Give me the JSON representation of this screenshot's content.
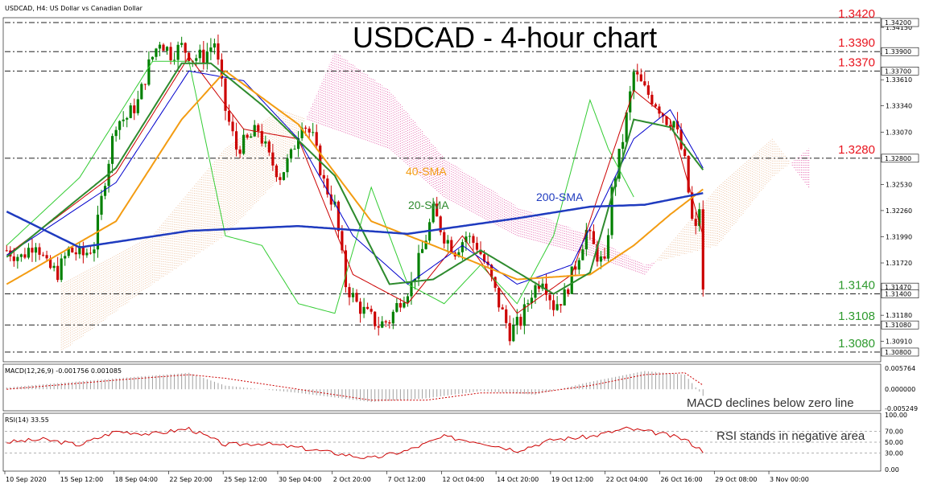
{
  "header": {
    "main": "USDCAD, H4:  US Dollar vs Canadian Dollar",
    "macd": "MACD(12,26,9) -0.001756 0.001085",
    "rsi": "RSI(14) 33.55"
  },
  "title": "USDCAD - 4-hour chart",
  "colors": {
    "bull": "#008000",
    "bear": "#cc0000",
    "sma20": "#2e8b2e",
    "sma40": "#f39c12",
    "sma200": "#1f3bbf",
    "tenkan": "#cc0000",
    "kijun": "#0000cc",
    "chikou": "#33cc33",
    "cloud": "#e0409a",
    "level_red": "#e8141e",
    "level_green": "#2e9a2e"
  },
  "annotations": {
    "sma40": "40-SMA",
    "sma20": "20-SMA",
    "sma200": "200-SMA",
    "macd_note": "MACD declines below zero line",
    "rsi_note": "RSI stands in negative area"
  },
  "levels": [
    {
      "label": "1.3420",
      "value": 1.342,
      "color": "red"
    },
    {
      "label": "1.3390",
      "value": 1.339,
      "color": "red"
    },
    {
      "label": "1.3370",
      "value": 1.337,
      "color": "red"
    },
    {
      "label": "1.3280",
      "value": 1.328,
      "color": "red"
    },
    {
      "label": "1.3140",
      "value": 1.314,
      "color": "green"
    },
    {
      "label": "1.3108",
      "value": 1.3108,
      "color": "green"
    },
    {
      "label": "1.3080",
      "value": 1.308,
      "color": "green"
    }
  ],
  "price_axis": {
    "ticks": [
      "1.34150",
      "1.33880",
      "1.33610",
      "1.33340",
      "1.33070",
      "1.32800",
      "1.32530",
      "1.32260",
      "1.31990",
      "1.31720",
      "1.31450",
      "1.31180",
      "1.30910"
    ],
    "boxes": [
      "1.34200",
      "1.33900",
      "1.33700",
      "1.32800",
      "1.31470",
      "1.31400",
      "1.31080",
      "1.30800"
    ]
  },
  "macd_axis": [
    "0.005764",
    "0.000000",
    "-0.005249"
  ],
  "rsi_axis": [
    "100.00",
    "70.00",
    "50.00",
    "30.00",
    "0.00"
  ],
  "x_labels": [
    "10 Sep 2020",
    "15 Sep 12:00",
    "18 Sep 04:00",
    "22 Sep 20:00",
    "25 Sep 12:00",
    "30 Sep 04:00",
    "2 Oct 20:00",
    "7 Oct 12:00",
    "12 Oct 04:00",
    "14 Oct 20:00",
    "19 Oct 12:00",
    "22 Oct 04:00",
    "26 Oct 16:00",
    "29 Oct 08:00",
    "3 Nov 00:00"
  ],
  "chart_data": {
    "type": "candlestick",
    "symbol": "USDCAD",
    "timeframe": "H4",
    "ylim": [
      1.307,
      1.3425
    ],
    "close_path": [
      [
        0,
        1.3185
      ],
      [
        4,
        1.3178
      ],
      [
        8,
        1.3195
      ],
      [
        11,
        1.3168
      ],
      [
        14,
        1.3162
      ],
      [
        17,
        1.3185
      ],
      [
        21,
        1.318
      ],
      [
        24,
        1.319
      ],
      [
        27,
        1.326
      ],
      [
        30,
        1.3318
      ],
      [
        33,
        1.3322
      ],
      [
        36,
        1.3338
      ],
      [
        39,
        1.3376
      ],
      [
        42,
        1.3402
      ],
      [
        45,
        1.3388
      ],
      [
        48,
        1.3395
      ],
      [
        51,
        1.3384
      ],
      [
        54,
        1.3385
      ],
      [
        57,
        1.34
      ],
      [
        60,
        1.333
      ],
      [
        63,
        1.329
      ],
      [
        66,
        1.3298
      ],
      [
        69,
        1.331
      ],
      [
        72,
        1.328
      ],
      [
        75,
        1.3262
      ],
      [
        78,
        1.3282
      ],
      [
        81,
        1.332
      ],
      [
        84,
        1.33
      ],
      [
        87,
        1.3255
      ],
      [
        90,
        1.323
      ],
      [
        93,
        1.315
      ],
      [
        96,
        1.313
      ],
      [
        99,
        1.3118
      ],
      [
        102,
        1.3108
      ],
      [
        105,
        1.3113
      ],
      [
        108,
        1.3135
      ],
      [
        111,
        1.315
      ],
      [
        114,
        1.3185
      ],
      [
        117,
        1.3225
      ],
      [
        120,
        1.32
      ],
      [
        123,
        1.3185
      ],
      [
        126,
        1.32
      ],
      [
        129,
        1.319
      ],
      [
        132,
        1.3165
      ],
      [
        135,
        1.313
      ],
      [
        138,
        1.31
      ],
      [
        141,
        1.3112
      ],
      [
        144,
        1.3142
      ],
      [
        147,
        1.3158
      ],
      [
        150,
        1.3128
      ],
      [
        153,
        1.3138
      ],
      [
        156,
        1.317
      ],
      [
        159,
        1.3205
      ],
      [
        162,
        1.318
      ],
      [
        164,
        1.3168
      ],
      [
        166,
        1.3245
      ],
      [
        169,
        1.33
      ],
      [
        172,
        1.3368
      ],
      [
        175,
        1.335
      ],
      [
        178,
        1.3338
      ],
      [
        181,
        1.332
      ],
      [
        183,
        1.3318
      ],
      [
        186,
        1.3275
      ],
      [
        188,
        1.3215
      ],
      [
        189,
        1.3205
      ],
      [
        190,
        1.323
      ],
      [
        191,
        1.314
      ]
    ],
    "sma20": [
      [
        0,
        1.3178
      ],
      [
        30,
        1.327
      ],
      [
        48,
        1.3378
      ],
      [
        56,
        1.3378
      ],
      [
        70,
        1.3335
      ],
      [
        90,
        1.3262
      ],
      [
        105,
        1.315
      ],
      [
        117,
        1.3155
      ],
      [
        130,
        1.3185
      ],
      [
        150,
        1.314
      ],
      [
        160,
        1.3162
      ],
      [
        172,
        1.332
      ],
      [
        182,
        1.3312
      ],
      [
        191,
        1.3268
      ]
    ],
    "sma40": [
      [
        0,
        1.315
      ],
      [
        30,
        1.3215
      ],
      [
        48,
        1.332
      ],
      [
        60,
        1.337
      ],
      [
        80,
        1.3315
      ],
      [
        100,
        1.3215
      ],
      [
        117,
        1.319
      ],
      [
        140,
        1.3155
      ],
      [
        160,
        1.316
      ],
      [
        172,
        1.319
      ],
      [
        182,
        1.3222
      ],
      [
        191,
        1.3248
      ]
    ],
    "sma200": [
      [
        0,
        1.3225
      ],
      [
        20,
        1.3188
      ],
      [
        50,
        1.3205
      ],
      [
        80,
        1.321
      ],
      [
        110,
        1.3202
      ],
      [
        140,
        1.3218
      ],
      [
        160,
        1.323
      ],
      [
        175,
        1.3232
      ],
      [
        191,
        1.3244
      ]
    ],
    "tenkan": [
      [
        0,
        1.318
      ],
      [
        30,
        1.3265
      ],
      [
        50,
        1.3385
      ],
      [
        65,
        1.331
      ],
      [
        80,
        1.33
      ],
      [
        95,
        1.316
      ],
      [
        110,
        1.313
      ],
      [
        125,
        1.32
      ],
      [
        140,
        1.312
      ],
      [
        155,
        1.316
      ],
      [
        172,
        1.335
      ],
      [
        182,
        1.332
      ],
      [
        191,
        1.32
      ]
    ],
    "kijun": [
      [
        0,
        1.318
      ],
      [
        30,
        1.3255
      ],
      [
        50,
        1.337
      ],
      [
        65,
        1.336
      ],
      [
        80,
        1.33
      ],
      [
        95,
        1.32
      ],
      [
        110,
        1.315
      ],
      [
        125,
        1.319
      ],
      [
        140,
        1.315
      ],
      [
        155,
        1.317
      ],
      [
        172,
        1.33
      ],
      [
        182,
        1.333
      ],
      [
        191,
        1.327
      ]
    ],
    "chikou": [
      [
        0,
        1.319
      ],
      [
        20,
        1.326
      ],
      [
        40,
        1.338
      ],
      [
        50,
        1.338
      ],
      [
        60,
        1.32
      ],
      [
        70,
        1.319
      ],
      [
        80,
        1.313
      ],
      [
        90,
        1.312
      ],
      [
        100,
        1.325
      ],
      [
        110,
        1.315
      ],
      [
        120,
        1.313
      ],
      [
        130,
        1.317
      ],
      [
        140,
        1.313
      ],
      [
        150,
        1.32
      ],
      [
        160,
        1.334
      ],
      [
        165,
        1.329
      ],
      [
        172,
        1.324
      ]
    ],
    "cloud_a": [
      [
        15,
        1.315
      ],
      [
        40,
        1.32
      ],
      [
        60,
        1.329
      ],
      [
        75,
        1.333
      ],
      [
        90,
        1.331
      ],
      [
        105,
        1.329
      ],
      [
        120,
        1.324
      ],
      [
        140,
        1.32
      ],
      [
        160,
        1.318
      ],
      [
        175,
        1.316
      ],
      [
        195,
        1.325
      ],
      [
        210,
        1.33
      ],
      [
        220,
        1.325
      ]
    ],
    "cloud_b": [
      [
        15,
        1.308
      ],
      [
        40,
        1.315
      ],
      [
        60,
        1.32
      ],
      [
        75,
        1.326
      ],
      [
        90,
        1.339
      ],
      [
        105,
        1.335
      ],
      [
        120,
        1.328
      ],
      [
        140,
        1.323
      ],
      [
        160,
        1.32
      ],
      [
        175,
        1.317
      ],
      [
        195,
        1.319
      ],
      [
        210,
        1.326
      ],
      [
        220,
        1.329
      ]
    ],
    "macd": [
      [
        0,
        0.0005
      ],
      [
        30,
        0.003
      ],
      [
        50,
        0.0045
      ],
      [
        60,
        0.001
      ],
      [
        80,
        -0.001
      ],
      [
        100,
        -0.0035
      ],
      [
        115,
        -0.0025
      ],
      [
        130,
        -0.0005
      ],
      [
        145,
        -0.0015
      ],
      [
        160,
        0.002
      ],
      [
        175,
        0.005
      ],
      [
        186,
        0.004
      ],
      [
        191,
        -0.0018
      ]
    ],
    "macd_signal": [
      [
        0,
        0.0
      ],
      [
        30,
        0.0025
      ],
      [
        50,
        0.004
      ],
      [
        60,
        0.003
      ],
      [
        80,
        0.0
      ],
      [
        100,
        -0.003
      ],
      [
        115,
        -0.003
      ],
      [
        130,
        -0.001
      ],
      [
        145,
        -0.001
      ],
      [
        160,
        0.001
      ],
      [
        175,
        0.004
      ],
      [
        186,
        0.0045
      ],
      [
        191,
        0.0011
      ]
    ],
    "rsi": [
      [
        0,
        50
      ],
      [
        10,
        55
      ],
      [
        20,
        45
      ],
      [
        30,
        70
      ],
      [
        40,
        65
      ],
      [
        50,
        75
      ],
      [
        60,
        45
      ],
      [
        70,
        48
      ],
      [
        80,
        40
      ],
      [
        90,
        30
      ],
      [
        100,
        20
      ],
      [
        110,
        35
      ],
      [
        120,
        60
      ],
      [
        130,
        50
      ],
      [
        140,
        35
      ],
      [
        150,
        55
      ],
      [
        160,
        60
      ],
      [
        170,
        75
      ],
      [
        180,
        65
      ],
      [
        186,
        55
      ],
      [
        191,
        34
      ]
    ],
    "rsi_levels": [
      70,
      50,
      30
    ],
    "macd_range": [
      -0.005249,
      0.005764
    ]
  }
}
